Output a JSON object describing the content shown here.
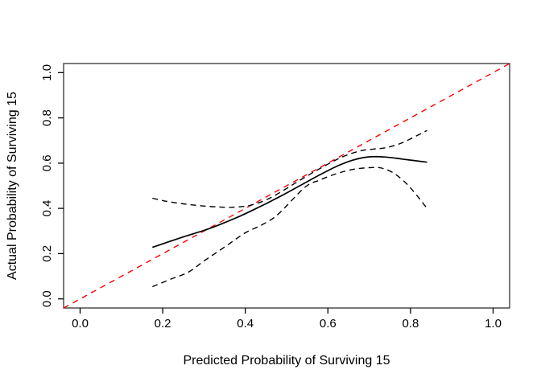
{
  "figure": {
    "background": "#ffffff",
    "x_axis_title": "Predicted Probability of Surviving 15",
    "y_axis_title": "Actual Probability of Surviving 15"
  },
  "chart_data": {
    "type": "line",
    "title": "",
    "xlabel": "Predicted Probability of Surviving 15",
    "ylabel": "Actual Probability of Surviving 15",
    "xlim": [
      -0.04,
      1.04
    ],
    "ylim": [
      -0.04,
      1.04
    ],
    "x_ticks": [
      0.0,
      0.2,
      0.4,
      0.6,
      0.8,
      1.0
    ],
    "y_ticks": [
      0.0,
      0.2,
      0.4,
      0.6,
      0.8,
      1.0
    ],
    "x_tick_labels": [
      "0.0",
      "0.2",
      "0.4",
      "0.6",
      "0.8",
      "1.0"
    ],
    "y_tick_labels": [
      "0.0",
      "0.2",
      "0.4",
      "0.6",
      "0.8",
      "1.0"
    ],
    "grid": false,
    "legend": "none",
    "box_color": "#333333",
    "tick_color": "#000000",
    "text_color": "#000000",
    "series": [
      {
        "name": "ideal-line",
        "description": "identity reference line y = x",
        "color": "#ff0000",
        "style": "dashed",
        "dash": "7 6",
        "width": 1.4,
        "smooth": false,
        "x": [
          -0.04,
          1.04
        ],
        "y": [
          -0.04,
          1.04
        ]
      },
      {
        "name": "calibration-curve",
        "description": "logistic calibration (solid)",
        "color": "#000000",
        "style": "solid",
        "dash": "",
        "width": 1.7,
        "smooth": true,
        "x": [
          0.175,
          0.22,
          0.26,
          0.3,
          0.34,
          0.38,
          0.42,
          0.46,
          0.5,
          0.54,
          0.58,
          0.62,
          0.66,
          0.7,
          0.74,
          0.78,
          0.84
        ],
        "y": [
          0.228,
          0.256,
          0.28,
          0.303,
          0.33,
          0.36,
          0.394,
          0.43,
          0.468,
          0.508,
          0.548,
          0.585,
          0.613,
          0.628,
          0.627,
          0.618,
          0.604
        ]
      },
      {
        "name": "upper-confidence-band",
        "description": "upper confidence band (dashed)",
        "color": "#000000",
        "style": "dashed",
        "dash": "7 5",
        "width": 1.4,
        "smooth": true,
        "x": [
          0.175,
          0.21,
          0.25,
          0.29,
          0.33,
          0.37,
          0.41,
          0.45,
          0.49,
          0.53,
          0.57,
          0.61,
          0.645,
          0.68,
          0.71,
          0.74,
          0.78,
          0.84
        ],
        "y": [
          0.445,
          0.431,
          0.42,
          0.412,
          0.407,
          0.405,
          0.413,
          0.437,
          0.477,
          0.522,
          0.565,
          0.605,
          0.635,
          0.655,
          0.662,
          0.668,
          0.69,
          0.744
        ]
      },
      {
        "name": "lower-confidence-band",
        "description": "lower confidence band (dashed)",
        "color": "#000000",
        "style": "dashed",
        "dash": "7 5",
        "width": 1.4,
        "smooth": true,
        "x": [
          0.175,
          0.22,
          0.262,
          0.3,
          0.352,
          0.4,
          0.442,
          0.48,
          0.544,
          0.58,
          0.62,
          0.66,
          0.7,
          0.73,
          0.76,
          0.79,
          0.815,
          0.84
        ],
        "y": [
          0.054,
          0.088,
          0.118,
          0.168,
          0.232,
          0.292,
          0.329,
          0.375,
          0.493,
          0.525,
          0.553,
          0.572,
          0.58,
          0.578,
          0.555,
          0.51,
          0.458,
          0.4
        ]
      }
    ]
  }
}
